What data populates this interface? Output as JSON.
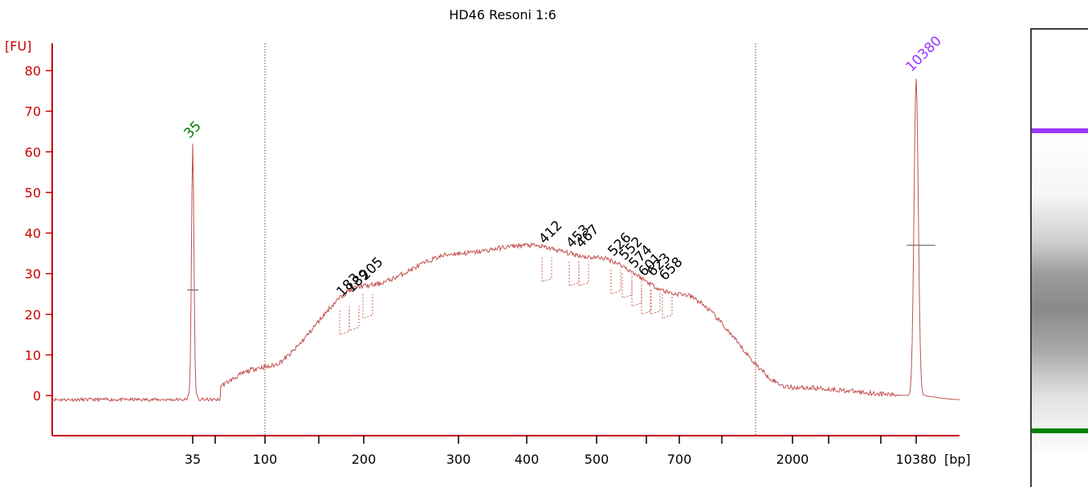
{
  "chart_data": {
    "type": "line",
    "title": "HD46 Resoni 1:6",
    "ylabel": "[FU]",
    "xlabel": "[bp]",
    "ylim": [
      -10,
      85
    ],
    "y_ticks": [
      0,
      10,
      20,
      30,
      40,
      50,
      60,
      70,
      80
    ],
    "x_tick_labels": [
      "35",
      "100",
      "200",
      "300",
      "400",
      "500",
      "700",
      "2000",
      "10380"
    ],
    "colors": {
      "trace": "#c0504d",
      "axis": "#cc0000",
      "lower_marker": "#008000",
      "upper_marker": "#9933ff",
      "fragment_label": "#000000"
    },
    "series": [
      {
        "values": [
          {
            "x": "35",
            "y": 0
          },
          {
            "x": "35",
            "y": 62
          },
          {
            "x": "100",
            "y": 7
          },
          {
            "x": "200",
            "y": 27
          },
          {
            "x": "300",
            "y": 35
          },
          {
            "x": "400",
            "y": 37
          },
          {
            "x": "500",
            "y": 34
          },
          {
            "x": "700",
            "y": 25
          },
          {
            "x": "2000",
            "y": 2
          },
          {
            "x": "10380",
            "y": 0
          },
          {
            "x": "10380",
            "y": 78
          }
        ]
      }
    ],
    "marker_peaks": [
      {
        "label": "35",
        "height": 62,
        "color": "#008000"
      },
      {
        "label": "10380",
        "height": 78,
        "color": "#9933ff"
      }
    ],
    "fragment_peaks": [
      {
        "label": "183",
        "height": 23
      },
      {
        "label": "189",
        "height": 24
      },
      {
        "label": "205",
        "height": 27
      },
      {
        "label": "412",
        "height": 36
      },
      {
        "label": "453",
        "height": 35
      },
      {
        "label": "467",
        "height": 35
      },
      {
        "label": "526",
        "height": 33
      },
      {
        "label": "552",
        "height": 32
      },
      {
        "label": "574",
        "height": 30
      },
      {
        "label": "601",
        "height": 28
      },
      {
        "label": "623",
        "height": 28
      },
      {
        "label": "658",
        "height": 27
      }
    ],
    "gel_lane": {
      "upper_marker_color": "#9933ff",
      "lower_marker_color": "#008000"
    }
  }
}
